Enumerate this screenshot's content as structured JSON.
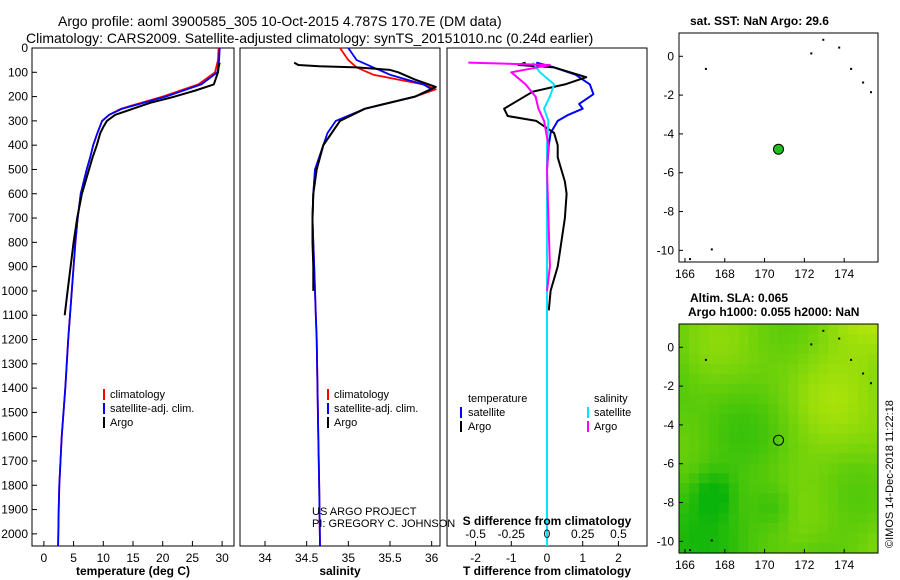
{
  "header": {
    "line1": "Argo profile: aoml 3900585_305 10-Oct-2015 4.787S 170.7E (DM data)",
    "line2": "Climatology: CARS2009. Satellite-adjusted climatology: synTS_20151010.nc (0.24d earlier)"
  },
  "colors": {
    "climatology": "#ff0000",
    "satellite": "#0000ff",
    "argo": "#000000",
    "salinity_sat": "#00e5ff",
    "salinity_argo": "#ff00ff",
    "marker": "#1fbf1f"
  },
  "chart_data": [
    {
      "type": "line",
      "name": "temperature",
      "xlabel": "temperature (deg C)",
      "xlim": [
        -2,
        32
      ],
      "ylim": [
        2050,
        0
      ],
      "xticks": [
        "0",
        "5",
        "10",
        "15",
        "20",
        "25",
        "30"
      ],
      "yticks": [
        "0",
        "100",
        "200",
        "300",
        "400",
        "500",
        "600",
        "700",
        "800",
        "900",
        "1000",
        "1100",
        "1200",
        "1300",
        "1400",
        "1500",
        "1600",
        "1700",
        "1800",
        "1900",
        "2000"
      ],
      "legend": [
        "climatology",
        "satellite-adj. clim.",
        "Argo"
      ],
      "series": [
        {
          "name": "climatology",
          "x": [
            29.4,
            29.3,
            28.8,
            26,
            20,
            13,
            11,
            9.8,
            9,
            8.3,
            7.8,
            7.2,
            6.7,
            6.2,
            5.7,
            5.3,
            5,
            4.7,
            4.4,
            4.1,
            3.6,
            3.3,
            3,
            2.8,
            2.6,
            2.5,
            2.4
          ],
          "y": [
            0,
            50,
            100,
            150,
            200,
            250,
            275,
            300,
            350,
            400,
            450,
            500,
            550,
            600,
            700,
            800,
            900,
            1000,
            1100,
            1200,
            1400,
            1500,
            1600,
            1700,
            1800,
            1900,
            2050
          ]
        },
        {
          "name": "satellite-adj. clim.",
          "x": [
            29.6,
            29.5,
            29.2,
            26.5,
            20.5,
            13.2,
            11,
            9.8,
            9,
            8.3,
            7.8,
            7.2,
            6.7,
            6.2,
            5.7,
            5.3,
            5,
            4.7,
            4.4,
            4.1,
            3.6,
            3.3,
            3,
            2.8,
            2.6,
            2.5,
            2.4
          ],
          "y": [
            0,
            50,
            100,
            150,
            200,
            250,
            275,
            300,
            350,
            400,
            450,
            500,
            550,
            600,
            700,
            800,
            900,
            1000,
            1100,
            1200,
            1400,
            1500,
            1600,
            1700,
            1800,
            1900,
            2050
          ]
        },
        {
          "name": "Argo",
          "x": [
            29.6,
            29.5,
            29.4,
            29.3,
            28.6,
            25.5,
            22,
            18,
            15,
            12,
            10.6,
            10,
            9.5,
            8.9,
            8.2,
            7.6,
            7,
            6.4,
            5.6,
            5,
            4.5,
            4.2,
            4,
            3.5
          ],
          "y": [
            60,
            70,
            80,
            100,
            150,
            175,
            200,
            225,
            250,
            275,
            300,
            325,
            350,
            400,
            450,
            500,
            550,
            600,
            700,
            800,
            900,
            960,
            1000,
            1100
          ]
        }
      ]
    },
    {
      "type": "line",
      "name": "salinity",
      "xlabel": "salinity",
      "xlim": [
        33.7,
        36.1
      ],
      "ylim": [
        2050,
        0
      ],
      "xticks": [
        "34",
        "34.5",
        "35",
        "35.5",
        "36"
      ],
      "legend": [
        "climatology",
        "satellite-adj. clim.",
        "Argo"
      ],
      "annotation": [
        "US ARGO PROJECT",
        "PI: GREGORY C. JOHNSON"
      ],
      "series": [
        {
          "name": "climatology",
          "x": [
            34.9,
            35,
            35.1,
            35.3,
            35.6,
            35.9,
            36.05,
            35.8,
            35.2,
            34.9,
            34.8,
            34.7,
            34.65,
            34.6,
            34.58,
            34.57,
            34.58,
            34.59,
            34.6,
            34.61,
            34.62,
            34.63,
            34.64,
            34.65,
            34.66
          ],
          "y": [
            0,
            50,
            80,
            110,
            130,
            150,
            170,
            200,
            250,
            300,
            350,
            400,
            450,
            500,
            600,
            700,
            800,
            900,
            1000,
            1100,
            1200,
            1400,
            1600,
            1800,
            2050
          ]
        },
        {
          "name": "satellite-adj. clim.",
          "x": [
            35,
            35.1,
            35.3,
            35.5,
            35.7,
            35.9,
            36,
            35.8,
            35.2,
            34.85,
            34.75,
            34.7,
            34.65,
            34.6,
            34.58,
            34.57,
            34.58,
            34.59,
            34.6,
            34.61,
            34.62,
            34.63,
            34.64,
            34.65,
            34.66
          ],
          "y": [
            0,
            50,
            80,
            110,
            130,
            150,
            170,
            200,
            250,
            300,
            350,
            400,
            450,
            500,
            600,
            700,
            800,
            900,
            1000,
            1100,
            1200,
            1400,
            1600,
            1800,
            2050
          ]
        },
        {
          "name": "Argo",
          "x": [
            34.35,
            34.4,
            34.65,
            35.1,
            35.5,
            35.6,
            35.8,
            36.05,
            35.8,
            35.2,
            34.9,
            34.8,
            34.7,
            34.62,
            34.58,
            34.57,
            34.57,
            34.58,
            34.58
          ],
          "y": [
            60,
            70,
            75,
            80,
            90,
            100,
            130,
            160,
            200,
            250,
            300,
            350,
            400,
            500,
            600,
            700,
            800,
            900,
            1000
          ]
        }
      ]
    },
    {
      "type": "line",
      "name": "difference",
      "xlabel": "T difference from climatology",
      "xlabel2": "S difference from climatology",
      "xlim": [
        -2.8,
        2.8
      ],
      "ylim": [
        2050,
        0
      ],
      "xticks": [
        "-2",
        "-1",
        "0",
        "1",
        "2"
      ],
      "xticks2": [
        "-0.5",
        "-0.25",
        "0",
        "0.25",
        "0.5"
      ],
      "legend_left_title": "temperature",
      "legend_right_title": "salinity",
      "legend_left": [
        "satellite",
        "Argo"
      ],
      "legend_right": [
        "satellite",
        "Argo"
      ],
      "series": [
        {
          "name": "temperature satellite",
          "x": [
            -0.3,
            0.2,
            0.8,
            1.2,
            1.3,
            0.9,
            1.0,
            0.6,
            0.3,
            0.1,
            0.05,
            0,
            0,
            0,
            0
          ],
          "y": [
            60,
            80,
            110,
            150,
            190,
            230,
            250,
            275,
            300,
            350,
            400,
            500,
            700,
            1000,
            1300
          ]
        },
        {
          "name": "temperature Argo",
          "x": [
            -0.6,
            -0.8,
            0.2,
            1.1,
            0.5,
            -0.4,
            -1.2,
            -1.1,
            -0.3,
            0.2,
            0.3,
            0.3,
            0.4,
            0.5,
            0.55,
            0.5,
            0.4,
            0.3,
            0.2,
            0.1,
            0.05
          ],
          "y": [
            60,
            70,
            80,
            120,
            150,
            180,
            250,
            280,
            300,
            350,
            400,
            450,
            500,
            550,
            600,
            700,
            800,
            900,
            950,
            1000,
            1080
          ]
        },
        {
          "name": "salinity satellite",
          "x": [
            -0.1,
            -0.05,
            0.05,
            0.02,
            -0.02,
            0.01,
            0,
            0,
            0,
            0,
            0
          ],
          "y": [
            60,
            100,
            150,
            200,
            250,
            300,
            400,
            800,
            1200,
            1600,
            2050
          ]
        },
        {
          "name": "salinity Argo",
          "x": [
            -0.55,
            0.02,
            -0.25,
            -0.15,
            -0.08,
            -0.06,
            -0.02,
            0.01,
            0,
            0.01,
            0.02,
            0
          ],
          "y": [
            60,
            70,
            100,
            150,
            200,
            250,
            300,
            400,
            500,
            700,
            900,
            1000
          ]
        }
      ]
    },
    {
      "type": "scatter",
      "name": "sst_map",
      "title": "sat. SST: NaN Argo: 29.6",
      "xlim": [
        165.7,
        175.7
      ],
      "ylim": [
        -10.6,
        1.2
      ],
      "xticks": [
        "166",
        "168",
        "170",
        "172",
        "174"
      ],
      "yticks": [
        "0",
        "-2",
        "-4",
        "-6",
        "-8",
        "-10"
      ],
      "profile_location": {
        "lon": 170.7,
        "lat": -4.787
      }
    },
    {
      "type": "heatmap",
      "name": "altimetry_map",
      "title": "Altim. SLA: 0.065",
      "subtitle": "Argo h1000: 0.055 h2000: NaN",
      "xlim": [
        165.7,
        175.7
      ],
      "ylim": [
        -10.6,
        1.2
      ],
      "xticks": [
        "166",
        "168",
        "170",
        "172",
        "174"
      ],
      "yticks": [
        "0",
        "-2",
        "-4",
        "-6",
        "-8",
        "-10"
      ],
      "profile_location": {
        "lon": 170.7,
        "lat": -4.787
      }
    }
  ],
  "watermark": "©IMOS 14-Dec-2018 11:22:18"
}
